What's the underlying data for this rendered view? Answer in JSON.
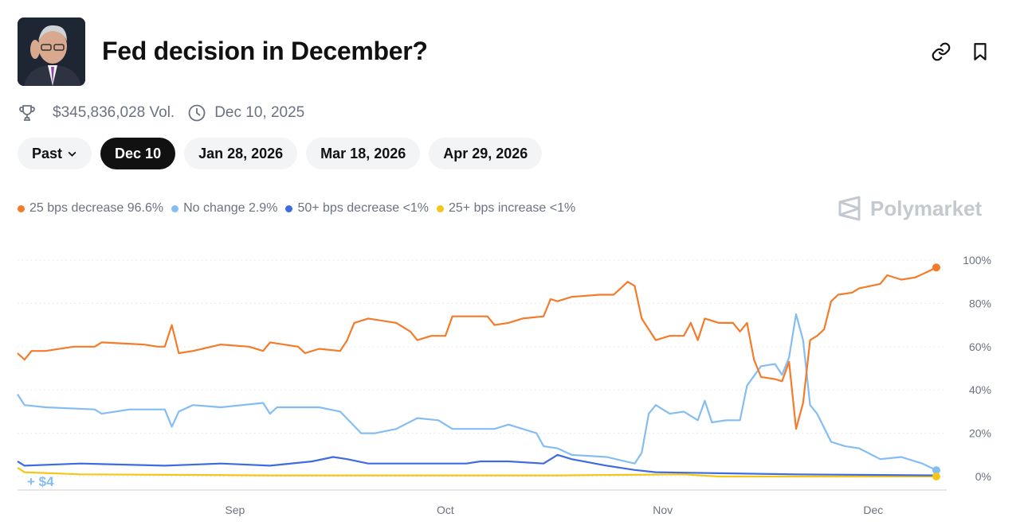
{
  "header": {
    "title": "Fed decision in December?",
    "avatar": "fed-chair-photo",
    "actions": [
      {
        "icon": "link-icon"
      },
      {
        "icon": "bookmark-icon"
      }
    ]
  },
  "meta": {
    "volume": "$345,836,028 Vol.",
    "end_date": "Dec 10, 2025",
    "volume_icon": "trophy-icon",
    "date_icon": "clock-icon"
  },
  "tabs": [
    {
      "label": "Past",
      "dropdown": true,
      "active": false
    },
    {
      "label": "Dec 10",
      "active": true
    },
    {
      "label": "Jan 28, 2026",
      "active": false
    },
    {
      "label": "Mar 18, 2026",
      "active": false
    },
    {
      "label": "Apr 29, 2026",
      "active": false
    }
  ],
  "legend": [
    {
      "label": "25 bps decrease 96.6%",
      "color": "#f47b2a"
    },
    {
      "label": "No change 2.9%",
      "color": "#84bdf3"
    },
    {
      "label": "50+ bps decrease <1%",
      "color": "#3f6be0"
    },
    {
      "label": "25+ bps increase <1%",
      "color": "#f5c518"
    }
  ],
  "brand": {
    "name": "Polymarket"
  },
  "chart_data": {
    "type": "line",
    "xlim": [
      "2025-08-01",
      "2025-12-10"
    ],
    "ylim": [
      0,
      100
    ],
    "y_unit": "%",
    "y_ticks": [
      {
        "value": 100,
        "label": "100%"
      },
      {
        "value": 80,
        "label": "80%"
      },
      {
        "value": 60,
        "label": "60%"
      },
      {
        "value": 40,
        "label": "40%"
      },
      {
        "value": 20,
        "label": "20%"
      },
      {
        "value": 0,
        "label": "0%"
      }
    ],
    "x_ticks": [
      {
        "date": "2025-09-01",
        "label": "Sep"
      },
      {
        "date": "2025-10-01",
        "label": "Oct"
      },
      {
        "date": "2025-11-01",
        "label": "Nov"
      },
      {
        "date": "2025-12-01",
        "label": "Dec"
      }
    ],
    "grid": "horizontal-dotted",
    "annotation": "+ $4",
    "series": [
      {
        "name": "25 bps decrease",
        "color": "#f47b2a",
        "end_marker": true,
        "points": [
          [
            "2025-08-01",
            57
          ],
          [
            "2025-08-02",
            54
          ],
          [
            "2025-08-03",
            58
          ],
          [
            "2025-08-05",
            58
          ],
          [
            "2025-08-09",
            60
          ],
          [
            "2025-08-12",
            60
          ],
          [
            "2025-08-13",
            62
          ],
          [
            "2025-08-19",
            61
          ],
          [
            "2025-08-21",
            60
          ],
          [
            "2025-08-22",
            60
          ],
          [
            "2025-08-23",
            70
          ],
          [
            "2025-08-24",
            57
          ],
          [
            "2025-08-26",
            58
          ],
          [
            "2025-08-30",
            61
          ],
          [
            "2025-09-03",
            60
          ],
          [
            "2025-09-05",
            58
          ],
          [
            "2025-09-06",
            62
          ],
          [
            "2025-09-10",
            60
          ],
          [
            "2025-09-11",
            57
          ],
          [
            "2025-09-13",
            59
          ],
          [
            "2025-09-16",
            58
          ],
          [
            "2025-09-17",
            63
          ],
          [
            "2025-09-18",
            71
          ],
          [
            "2025-09-20",
            73
          ],
          [
            "2025-09-24",
            71
          ],
          [
            "2025-09-26",
            67
          ],
          [
            "2025-09-27",
            63
          ],
          [
            "2025-09-29",
            65
          ],
          [
            "2025-10-01",
            65
          ],
          [
            "2025-10-02",
            74
          ],
          [
            "2025-10-07",
            74
          ],
          [
            "2025-10-08",
            70
          ],
          [
            "2025-10-10",
            71
          ],
          [
            "2025-10-12",
            73
          ],
          [
            "2025-10-15",
            74
          ],
          [
            "2025-10-16",
            82
          ],
          [
            "2025-10-17",
            81
          ],
          [
            "2025-10-19",
            83
          ],
          [
            "2025-10-23",
            84
          ],
          [
            "2025-10-25",
            84
          ],
          [
            "2025-10-26",
            87
          ],
          [
            "2025-10-27",
            90
          ],
          [
            "2025-10-28",
            88
          ],
          [
            "2025-10-29",
            73
          ],
          [
            "2025-10-30",
            68
          ],
          [
            "2025-10-31",
            63
          ],
          [
            "2025-11-02",
            65
          ],
          [
            "2025-11-04",
            65
          ],
          [
            "2025-11-05",
            71
          ],
          [
            "2025-11-06",
            63
          ],
          [
            "2025-11-07",
            73
          ],
          [
            "2025-11-09",
            71
          ],
          [
            "2025-11-11",
            71
          ],
          [
            "2025-11-12",
            67
          ],
          [
            "2025-11-13",
            71
          ],
          [
            "2025-11-14",
            54
          ],
          [
            "2025-11-15",
            46
          ],
          [
            "2025-11-17",
            45
          ],
          [
            "2025-11-18",
            44
          ],
          [
            "2025-11-19",
            53
          ],
          [
            "2025-11-20",
            22
          ],
          [
            "2025-11-21",
            34
          ],
          [
            "2025-11-22",
            63
          ],
          [
            "2025-11-23",
            65
          ],
          [
            "2025-11-24",
            68
          ],
          [
            "2025-11-25",
            81
          ],
          [
            "2025-11-26",
            84
          ],
          [
            "2025-11-28",
            85
          ],
          [
            "2025-11-29",
            87
          ],
          [
            "2025-12-02",
            89
          ],
          [
            "2025-12-03",
            93
          ],
          [
            "2025-12-05",
            91
          ],
          [
            "2025-12-07",
            92
          ],
          [
            "2025-12-09",
            95
          ],
          [
            "2025-12-10",
            96.6
          ]
        ]
      },
      {
        "name": "No change",
        "color": "#84bdf3",
        "end_marker": true,
        "points": [
          [
            "2025-08-01",
            38
          ],
          [
            "2025-08-02",
            33
          ],
          [
            "2025-08-05",
            32
          ],
          [
            "2025-08-12",
            31
          ],
          [
            "2025-08-13",
            29
          ],
          [
            "2025-08-17",
            31
          ],
          [
            "2025-08-22",
            31
          ],
          [
            "2025-08-23",
            23
          ],
          [
            "2025-08-24",
            30
          ],
          [
            "2025-08-26",
            33
          ],
          [
            "2025-08-30",
            32
          ],
          [
            "2025-09-05",
            34
          ],
          [
            "2025-09-06",
            29
          ],
          [
            "2025-09-07",
            32
          ],
          [
            "2025-09-13",
            32
          ],
          [
            "2025-09-16",
            30
          ],
          [
            "2025-09-19",
            20
          ],
          [
            "2025-09-21",
            20
          ],
          [
            "2025-09-24",
            22
          ],
          [
            "2025-09-27",
            27
          ],
          [
            "2025-09-30",
            26
          ],
          [
            "2025-10-02",
            22
          ],
          [
            "2025-10-08",
            22
          ],
          [
            "2025-10-10",
            24
          ],
          [
            "2025-10-14",
            20
          ],
          [
            "2025-10-15",
            14
          ],
          [
            "2025-10-17",
            13
          ],
          [
            "2025-10-19",
            10
          ],
          [
            "2025-10-24",
            9
          ],
          [
            "2025-10-28",
            6
          ],
          [
            "2025-10-29",
            11
          ],
          [
            "2025-10-30",
            29
          ],
          [
            "2025-10-31",
            33
          ],
          [
            "2025-11-02",
            29
          ],
          [
            "2025-11-04",
            30
          ],
          [
            "2025-11-06",
            26
          ],
          [
            "2025-11-07",
            35
          ],
          [
            "2025-11-08",
            25
          ],
          [
            "2025-11-10",
            26
          ],
          [
            "2025-11-12",
            26
          ],
          [
            "2025-11-13",
            42
          ],
          [
            "2025-11-15",
            51
          ],
          [
            "2025-11-17",
            52
          ],
          [
            "2025-11-18",
            47
          ],
          [
            "2025-11-19",
            55
          ],
          [
            "2025-11-20",
            75
          ],
          [
            "2025-11-21",
            63
          ],
          [
            "2025-11-22",
            33
          ],
          [
            "2025-11-23",
            29
          ],
          [
            "2025-11-25",
            16
          ],
          [
            "2025-11-27",
            14
          ],
          [
            "2025-11-29",
            13
          ],
          [
            "2025-12-02",
            8
          ],
          [
            "2025-12-05",
            9
          ],
          [
            "2025-12-08",
            6
          ],
          [
            "2025-12-10",
            2.9
          ]
        ]
      },
      {
        "name": "50+ bps decrease",
        "color": "#3f6be0",
        "end_marker": false,
        "points": [
          [
            "2025-08-01",
            7
          ],
          [
            "2025-08-02",
            5
          ],
          [
            "2025-08-10",
            6
          ],
          [
            "2025-08-22",
            5
          ],
          [
            "2025-08-30",
            6
          ],
          [
            "2025-09-06",
            5
          ],
          [
            "2025-09-12",
            7
          ],
          [
            "2025-09-15",
            9
          ],
          [
            "2025-09-17",
            8
          ],
          [
            "2025-09-20",
            6
          ],
          [
            "2025-09-27",
            6
          ],
          [
            "2025-10-04",
            6
          ],
          [
            "2025-10-06",
            7
          ],
          [
            "2025-10-10",
            7
          ],
          [
            "2025-10-15",
            6
          ],
          [
            "2025-10-17",
            10
          ],
          [
            "2025-10-19",
            8
          ],
          [
            "2025-10-24",
            5
          ],
          [
            "2025-10-28",
            3
          ],
          [
            "2025-10-31",
            2
          ],
          [
            "2025-11-09",
            1.5
          ],
          [
            "2025-11-20",
            1
          ],
          [
            "2025-12-10",
            0.5
          ]
        ]
      },
      {
        "name": "25+ bps increase",
        "color": "#f5c518",
        "end_marker": true,
        "points": [
          [
            "2025-08-01",
            4
          ],
          [
            "2025-08-02",
            2
          ],
          [
            "2025-08-10",
            1
          ],
          [
            "2025-09-06",
            0.5
          ],
          [
            "2025-10-17",
            0.5
          ],
          [
            "2025-11-04",
            1
          ],
          [
            "2025-11-09",
            0
          ],
          [
            "2025-12-10",
            0
          ]
        ]
      }
    ]
  }
}
